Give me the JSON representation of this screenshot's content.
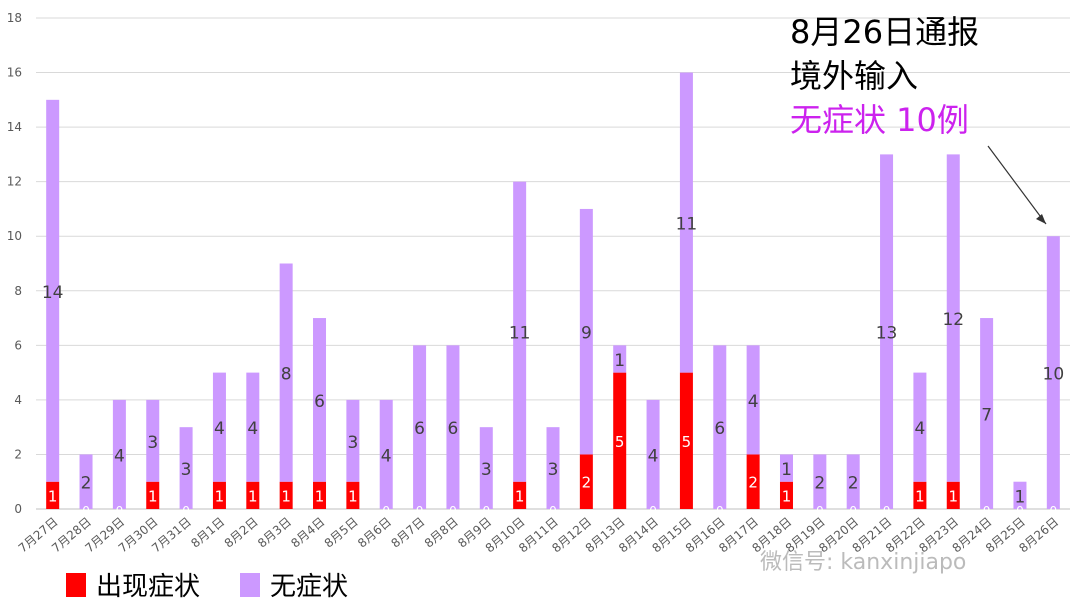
{
  "chart_data": {
    "type": "bar",
    "stacked": true,
    "categories": [
      "7月27日",
      "7月28日",
      "7月29日",
      "7月30日",
      "7月31日",
      "8月1日",
      "8月2日",
      "8月3日",
      "8月4日",
      "8月5日",
      "8月6日",
      "8月7日",
      "8月8日",
      "8月9日",
      "8月10日",
      "8月11日",
      "8月12日",
      "8月13日",
      "8月14日",
      "8月15日",
      "8月16日",
      "8月17日",
      "8月18日",
      "8月19日",
      "8月20日",
      "8月21日",
      "8月22日",
      "8月23日",
      "8月24日",
      "8月25日",
      "8月26日"
    ],
    "series": [
      {
        "name": "出现症状",
        "color": "#ff0000",
        "values": [
          1,
          0,
          0,
          1,
          0,
          1,
          1,
          1,
          1,
          1,
          0,
          0,
          0,
          0,
          1,
          0,
          2,
          5,
          0,
          5,
          0,
          2,
          1,
          0,
          0,
          0,
          1,
          1,
          0,
          0,
          0
        ]
      },
      {
        "name": "无症状",
        "color": "#cc99ff",
        "values": [
          14,
          2,
          4,
          3,
          3,
          4,
          4,
          8,
          6,
          3,
          4,
          6,
          6,
          3,
          11,
          3,
          9,
          1,
          4,
          11,
          6,
          4,
          1,
          2,
          2,
          13,
          4,
          12,
          7,
          1,
          10
        ]
      }
    ],
    "ylim": [
      0,
      18
    ],
    "yticks": [
      "0",
      "2",
      "4",
      "6",
      "8",
      "10",
      "12",
      "14",
      "16",
      "18"
    ],
    "grid": true,
    "legend_position": "bottom-left"
  },
  "callout": {
    "line1": "8月26日通报",
    "line2": "境外输入",
    "line3": "无症状 10例"
  },
  "watermark": "微信号: kanxinjiapo",
  "colors": {
    "symptom": "#ff0000",
    "asymptomatic": "#cc99ff",
    "callout_accent": "#cc22ee"
  }
}
